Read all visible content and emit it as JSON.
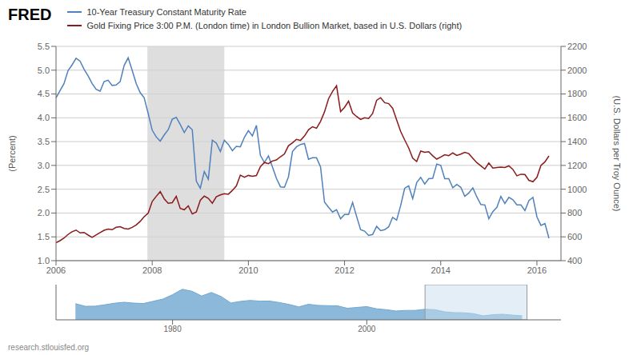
{
  "chart_data": [
    {
      "type": "line",
      "title": "FRED",
      "annotations": [
        {
          "text": "research.stlouisfed.org"
        }
      ],
      "x": [
        2006.0,
        2006.083,
        2006.167,
        2006.25,
        2006.333,
        2006.417,
        2006.5,
        2006.583,
        2006.667,
        2006.75,
        2006.833,
        2006.917,
        2007.0,
        2007.083,
        2007.167,
        2007.25,
        2007.333,
        2007.417,
        2007.5,
        2007.583,
        2007.667,
        2007.75,
        2007.833,
        2007.917,
        2008.0,
        2008.083,
        2008.167,
        2008.25,
        2008.333,
        2008.417,
        2008.5,
        2008.583,
        2008.667,
        2008.75,
        2008.833,
        2008.917,
        2009.0,
        2009.083,
        2009.167,
        2009.25,
        2009.333,
        2009.417,
        2009.5,
        2009.583,
        2009.667,
        2009.75,
        2009.833,
        2009.917,
        2010.0,
        2010.083,
        2010.167,
        2010.25,
        2010.333,
        2010.417,
        2010.5,
        2010.583,
        2010.667,
        2010.75,
        2010.833,
        2010.917,
        2011.0,
        2011.083,
        2011.167,
        2011.25,
        2011.333,
        2011.417,
        2011.5,
        2011.583,
        2011.667,
        2011.75,
        2011.833,
        2011.917,
        2012.0,
        2012.083,
        2012.167,
        2012.25,
        2012.333,
        2012.417,
        2012.5,
        2012.583,
        2012.667,
        2012.75,
        2012.833,
        2012.917,
        2013.0,
        2013.083,
        2013.167,
        2013.25,
        2013.333,
        2013.417,
        2013.5,
        2013.583,
        2013.667,
        2013.75,
        2013.833,
        2013.917,
        2014.0,
        2014.083,
        2014.167,
        2014.25,
        2014.333,
        2014.417,
        2014.5,
        2014.583,
        2014.667,
        2014.75,
        2014.833,
        2014.917,
        2015.0,
        2015.083,
        2015.167,
        2015.25,
        2015.333,
        2015.417,
        2015.5,
        2015.583,
        2015.667,
        2015.75,
        2015.833,
        2015.917,
        2016.0,
        2016.083,
        2016.167,
        2016.25
      ],
      "series": [
        {
          "name": "10-Year Treasury Constant Maturity Rate",
          "color": "#4f81bd",
          "axis": "y",
          "values": [
            4.42,
            4.57,
            4.72,
            4.99,
            5.11,
            5.25,
            5.19,
            5.02,
            4.88,
            4.72,
            4.6,
            4.56,
            4.76,
            4.79,
            4.68,
            4.69,
            4.76,
            5.1,
            5.26,
            5.0,
            4.72,
            4.53,
            4.42,
            4.09,
            3.74,
            3.6,
            3.51,
            3.64,
            3.75,
            3.97,
            4.01,
            3.86,
            3.69,
            3.83,
            3.75,
            2.67,
            2.52,
            2.87,
            2.71,
            3.53,
            3.47,
            3.29,
            3.53,
            3.44,
            3.31,
            3.4,
            3.39,
            3.59,
            3.73,
            3.62,
            3.84,
            3.21,
            3.06,
            3.2,
            2.97,
            2.73,
            2.55,
            2.54,
            2.76,
            3.29,
            3.39,
            3.44,
            3.46,
            3.13,
            3.16,
            3.16,
            2.97,
            2.23,
            2.12,
            2.02,
            2.07,
            1.88,
            1.97,
            1.97,
            2.22,
            1.93,
            1.65,
            1.62,
            1.53,
            1.55,
            1.72,
            1.63,
            1.65,
            1.71,
            1.91,
            1.85,
            2.16,
            2.52,
            2.57,
            2.3,
            2.64,
            2.75,
            2.61,
            2.72,
            2.73,
            3.03,
            3.0,
            2.72,
            2.72,
            2.53,
            2.6,
            2.54,
            2.35,
            2.42,
            2.53,
            2.34,
            2.18,
            2.17,
            1.88,
            2.03,
            2.12,
            2.35,
            2.2,
            2.33,
            2.28,
            2.17,
            2.17,
            2.05,
            2.26,
            2.33,
            1.92,
            1.74,
            1.78,
            1.47
          ]
        },
        {
          "name": "Gold Fixing Price 3:00 P.M. (London time) in London Bullion Market, based in U.S. Dollars (right)",
          "color": "#8b1a1a",
          "axis": "y2",
          "values": [
            550,
            568,
            590,
            620,
            643,
            657,
            633,
            637,
            615,
            596,
            616,
            636,
            655,
            665,
            660,
            680,
            685,
            670,
            665,
            680,
            700,
            730,
            770,
            800,
            897,
            940,
            980,
            919,
            882,
            887,
            940,
            839,
            828,
            860,
            793,
            808,
            907,
            942,
            924,
            882,
            936,
            952,
            963,
            958,
            990,
            1028,
            1118,
            1100,
            1116,
            1109,
            1115,
            1190,
            1225,
            1215,
            1237,
            1246,
            1273,
            1296,
            1365,
            1390,
            1419,
            1410,
            1447,
            1499,
            1525,
            1512,
            1570,
            1650,
            1760,
            1821,
            1869,
            1652,
            1688,
            1740,
            1641,
            1611,
            1586,
            1600,
            1594,
            1636,
            1747,
            1769,
            1727,
            1719,
            1680,
            1582,
            1485,
            1414,
            1347,
            1261,
            1233,
            1320,
            1310,
            1315,
            1281,
            1253,
            1270,
            1290,
            1282,
            1305,
            1284,
            1295,
            1310,
            1299,
            1260,
            1223,
            1197,
            1169,
            1221,
            1178,
            1183,
            1186,
            1183,
            1196,
            1166,
            1113,
            1126,
            1124,
            1075,
            1063,
            1100,
            1200,
            1230,
            1280
          ]
        }
      ],
      "xlim": [
        2006.0,
        2016.5
      ],
      "xticks": [
        2006,
        2008,
        2010,
        2012,
        2014,
        2016
      ],
      "y_label": "(Percent)",
      "ylim": [
        1.0,
        5.5
      ],
      "yticks": [
        {
          "value": 1.0,
          "label": "1.0"
        },
        1.5,
        {
          "value": 2.0,
          "label": "2.0"
        },
        2.5,
        {
          "value": 3.0,
          "label": "3.0"
        },
        3.5,
        {
          "value": 4.0,
          "label": "4.0"
        },
        4.5,
        {
          "value": 5.0,
          "label": "5.0"
        },
        5.5
      ],
      "y2_label": "(U.S. Dollars per Troy Ounce)",
      "y2lim": [
        400,
        2200
      ],
      "y2ticks": [
        400,
        600,
        800,
        1000,
        1200,
        1400,
        1600,
        1800,
        2000,
        2200
      ],
      "shading": {
        "x": [
          2007.9,
          2009.5
        ],
        "color": "#d3d3d3"
      },
      "grid": "y"
    },
    {
      "type": "area",
      "x": [
        1970,
        1971,
        1972,
        1973,
        1974,
        1975,
        1976,
        1977,
        1978,
        1979,
        1980,
        1981,
        1982,
        1983,
        1984,
        1985,
        1986,
        1987,
        1988,
        1989,
        1990,
        1991,
        1992,
        1993,
        1994,
        1995,
        1996,
        1997,
        1998,
        1999,
        2000,
        2001,
        2002,
        2003,
        2004,
        2005,
        2006,
        2007,
        2008,
        2009,
        2010,
        2011,
        2012,
        2013,
        2014,
        2015,
        2016
      ],
      "values": [
        7.35,
        6.16,
        6.21,
        6.84,
        7.56,
        7.99,
        7.61,
        7.42,
        8.41,
        9.44,
        11.43,
        13.92,
        13.0,
        10.84,
        12.44,
        10.62,
        7.68,
        8.39,
        8.85,
        8.49,
        8.55,
        7.86,
        7.01,
        5.87,
        7.09,
        6.57,
        6.44,
        6.35,
        5.26,
        5.64,
        6.03,
        5.02,
        4.61,
        4.01,
        4.27,
        4.29,
        4.79,
        4.63,
        3.66,
        3.26,
        3.22,
        2.79,
        1.8,
        2.35,
        2.54,
        2.14,
        1.84
      ],
      "color": "#6fa8d0",
      "xlim": [
        1968,
        2020
      ],
      "xticks": [
        1980,
        2000
      ],
      "ylim": [
        0,
        16
      ],
      "yticks": [],
      "tick_labels": "x",
      "highlight": [
        2006,
        2016.5
      ]
    }
  ]
}
